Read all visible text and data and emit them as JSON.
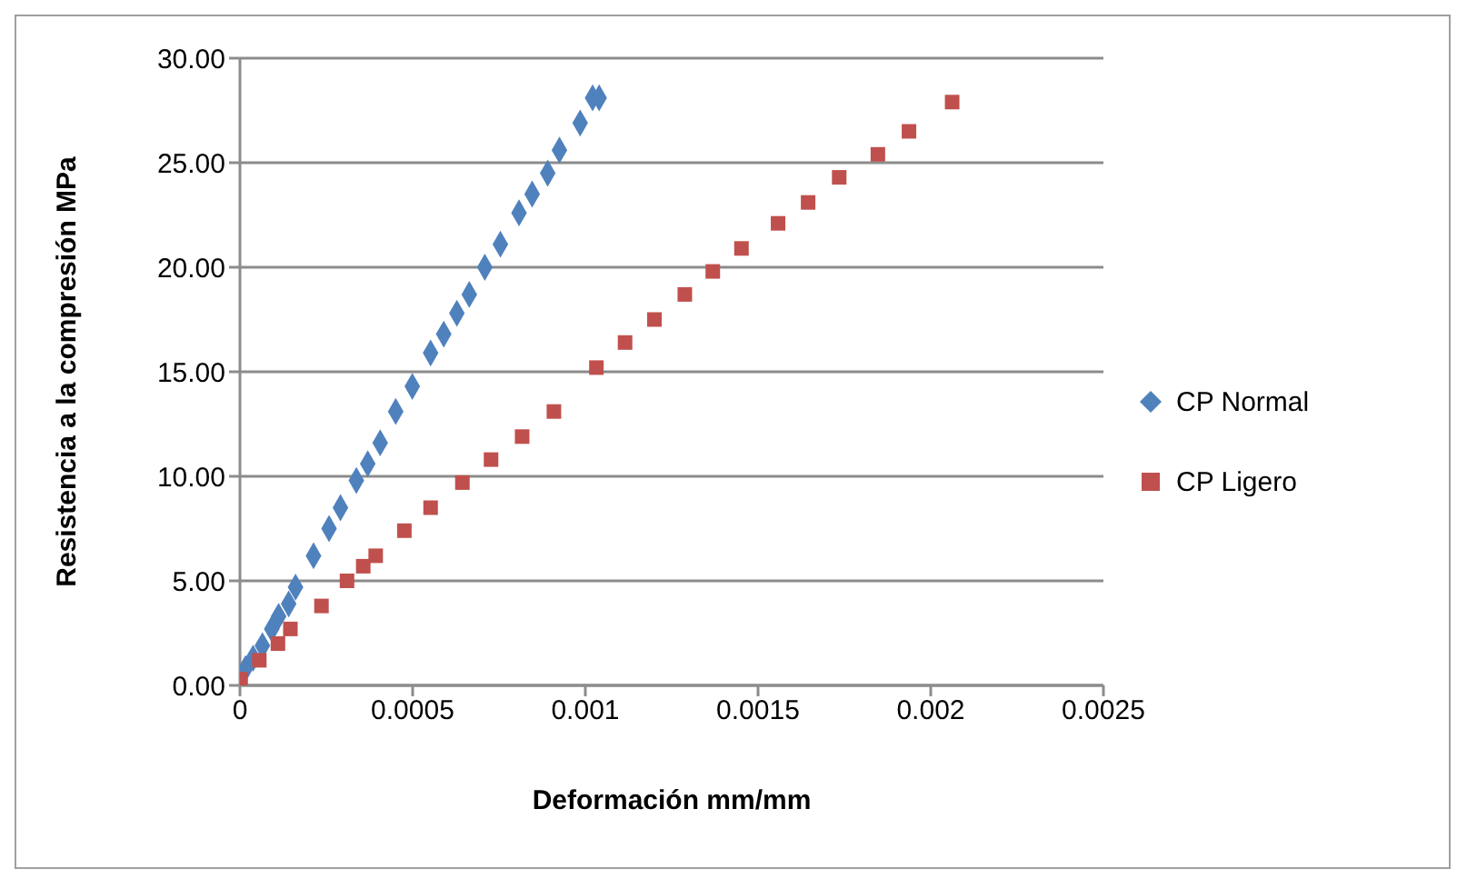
{
  "chart_data": {
    "type": "scatter",
    "xlabel": "Deformación mm/mm",
    "ylabel": "Resistencia a la compresión MPa",
    "xlim": [
      0,
      0.0025
    ],
    "xticks": [
      0,
      0.0005,
      0.001,
      0.0015,
      0.002,
      0.0025
    ],
    "ylim": [
      0,
      30
    ],
    "yticks": [
      {
        "value": 0,
        "label": "0.00"
      },
      {
        "value": 5,
        "label": "5.00"
      },
      {
        "value": 10,
        "label": "10.00"
      },
      {
        "value": 15,
        "label": "15.00"
      },
      {
        "value": 20,
        "label": "20.00"
      },
      {
        "value": 25,
        "label": "25.00"
      },
      {
        "value": 30,
        "label": "30.00"
      }
    ],
    "grid": "y",
    "legend": "right",
    "series": [
      {
        "name": "CP Normal",
        "color": "#4f81bd",
        "marker": "diamond",
        "x": [
          1.6e-05,
          3.8e-05,
          6.5e-05,
          9.2e-05,
          0.000112,
          0.000141,
          0.000161,
          0.000213,
          0.000258,
          0.000291,
          0.000337,
          0.00037,
          0.000406,
          0.000451,
          0.000499,
          0.000552,
          0.00059,
          0.000628,
          0.000664,
          0.000709,
          0.000754,
          0.000808,
          0.000846,
          0.000891,
          0.000925,
          0.000985,
          0.001021,
          0.00104
        ],
        "values": [
          0.8,
          1.3,
          1.9,
          2.7,
          3.3,
          3.9,
          4.7,
          6.2,
          7.5,
          8.5,
          9.8,
          10.6,
          11.6,
          13.1,
          14.3,
          15.9,
          16.8,
          17.8,
          18.7,
          20.0,
          21.1,
          22.6,
          23.5,
          24.5,
          25.6,
          26.9,
          28.1,
          28.1
        ]
      },
      {
        "name": "CP Ligero",
        "color": "#c0504d",
        "marker": "square",
        "x": [
          2e-06,
          5.6e-05,
          0.00011,
          0.000146,
          0.000236,
          0.00031,
          0.000357,
          0.000393,
          0.000476,
          0.000552,
          0.000644,
          0.000727,
          0.000817,
          0.000909,
          0.001032,
          0.001115,
          0.0012,
          0.001288,
          0.001369,
          0.001452,
          0.001558,
          0.001645,
          0.001735,
          0.001847,
          0.001937,
          0.002062
        ],
        "values": [
          0.3,
          1.2,
          2.0,
          2.7,
          3.8,
          5.0,
          5.7,
          6.2,
          7.4,
          8.5,
          9.7,
          10.8,
          11.9,
          13.1,
          15.2,
          16.4,
          17.5,
          18.7,
          19.8,
          20.9,
          22.1,
          23.1,
          24.3,
          25.4,
          26.5,
          27.9
        ]
      }
    ]
  }
}
